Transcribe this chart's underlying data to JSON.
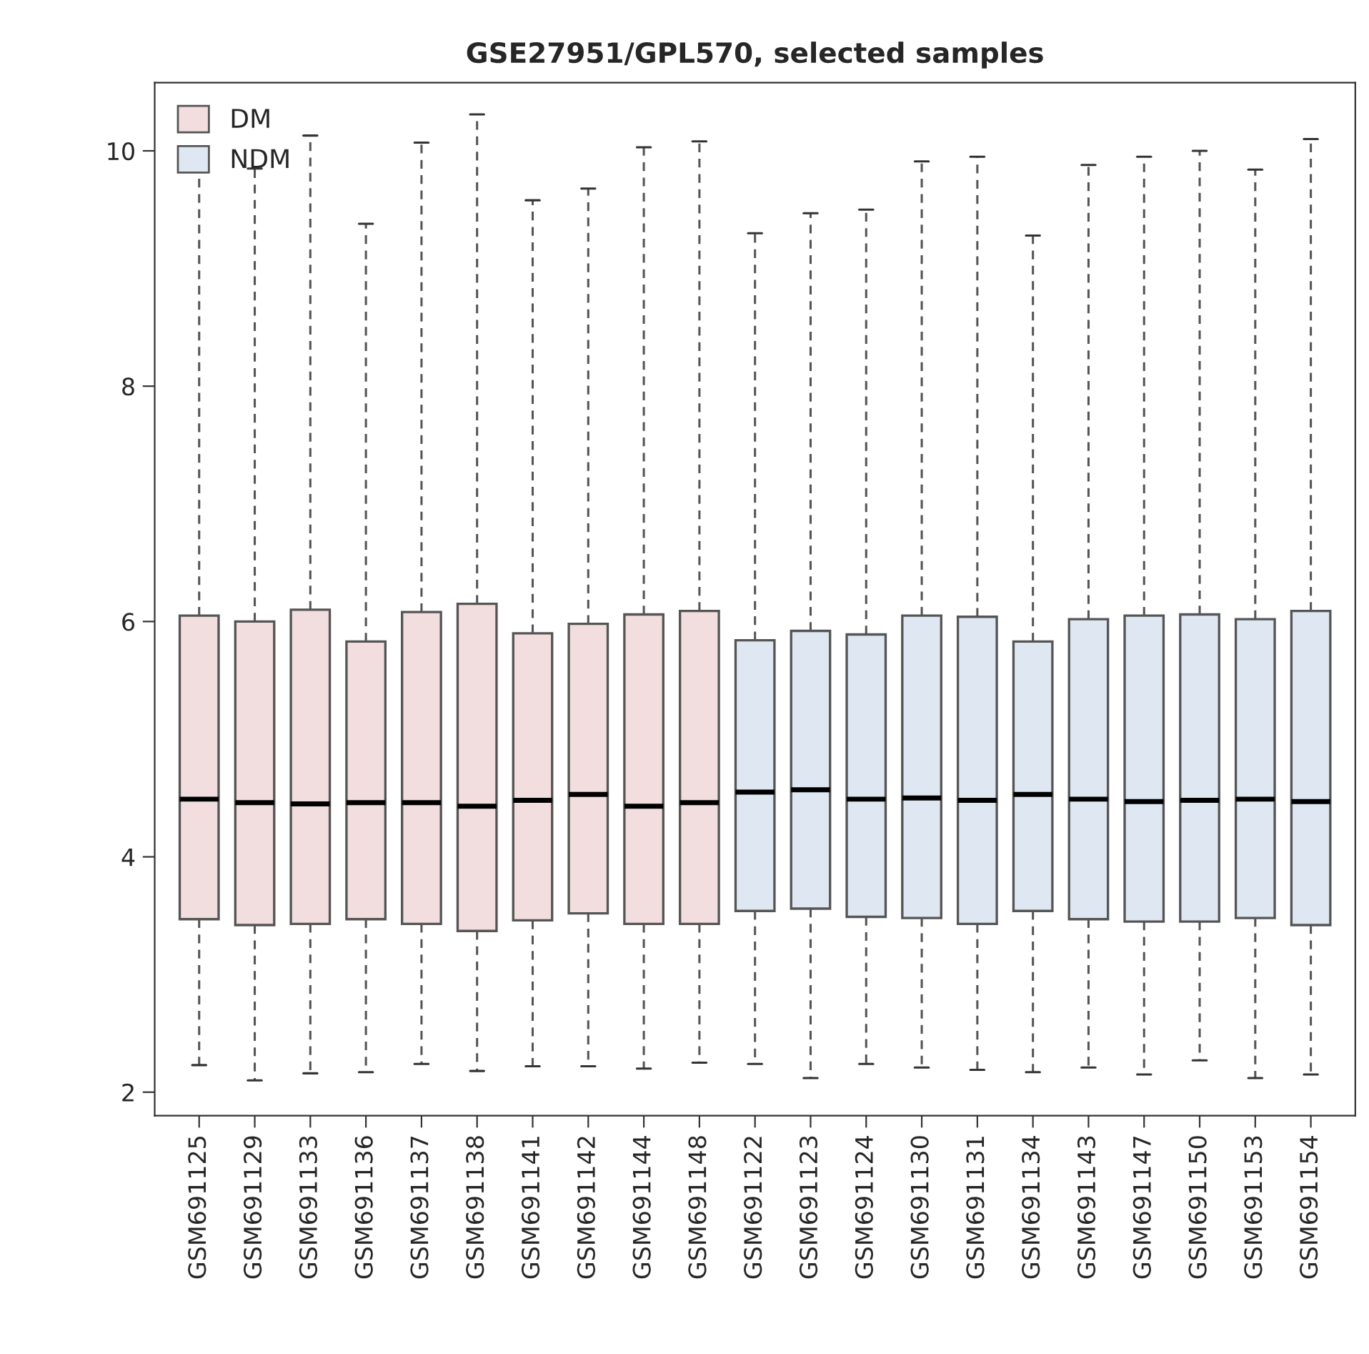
{
  "chart_data": {
    "type": "box",
    "title": "GSE27951/GPL570, selected samples",
    "categories": [
      "GSM691125",
      "GSM691129",
      "GSM691133",
      "GSM691136",
      "GSM691137",
      "GSM691138",
      "GSM691141",
      "GSM691142",
      "GSM691144",
      "GSM691148",
      "GSM691122",
      "GSM691123",
      "GSM691124",
      "GSM691130",
      "GSM691131",
      "GSM691134",
      "GSM691143",
      "GSM691147",
      "GSM691150",
      "GSM691153",
      "GSM691154"
    ],
    "series": [
      {
        "name": "DM",
        "color": "#f2dede",
        "x": [
          "GSM691125",
          "GSM691129",
          "GSM691133",
          "GSM691136",
          "GSM691137",
          "GSM691138",
          "GSM691141",
          "GSM691142",
          "GSM691144",
          "GSM691148"
        ],
        "boxes": [
          {
            "low": 2.23,
            "q1": 3.47,
            "median": 4.49,
            "q3": 6.05,
            "high": 9.96
          },
          {
            "low": 2.1,
            "q1": 3.42,
            "median": 4.46,
            "q3": 6.0,
            "high": 9.85
          },
          {
            "low": 2.16,
            "q1": 3.43,
            "median": 4.45,
            "q3": 6.1,
            "high": 10.13
          },
          {
            "low": 2.17,
            "q1": 3.47,
            "median": 4.46,
            "q3": 5.83,
            "high": 9.38
          },
          {
            "low": 2.24,
            "q1": 3.43,
            "median": 4.46,
            "q3": 6.08,
            "high": 10.07
          },
          {
            "low": 2.18,
            "q1": 3.37,
            "median": 4.43,
            "q3": 6.15,
            "high": 10.31
          },
          {
            "low": 2.22,
            "q1": 3.46,
            "median": 4.48,
            "q3": 5.9,
            "high": 9.58
          },
          {
            "low": 2.22,
            "q1": 3.52,
            "median": 4.53,
            "q3": 5.98,
            "high": 9.68
          },
          {
            "low": 2.2,
            "q1": 3.43,
            "median": 4.43,
            "q3": 6.06,
            "high": 10.03
          },
          {
            "low": 2.25,
            "q1": 3.43,
            "median": 4.46,
            "q3": 6.09,
            "high": 10.08
          }
        ]
      },
      {
        "name": "NDM",
        "color": "#dfe8f2",
        "x": [
          "GSM691122",
          "GSM691123",
          "GSM691124",
          "GSM691130",
          "GSM691131",
          "GSM691134",
          "GSM691143",
          "GSM691147",
          "GSM691150",
          "GSM691153",
          "GSM691154"
        ],
        "boxes": [
          {
            "low": 2.24,
            "q1": 3.54,
            "median": 4.55,
            "q3": 5.84,
            "high": 9.3
          },
          {
            "low": 2.12,
            "q1": 3.56,
            "median": 4.57,
            "q3": 5.92,
            "high": 9.47
          },
          {
            "low": 2.24,
            "q1": 3.49,
            "median": 4.49,
            "q3": 5.89,
            "high": 9.5
          },
          {
            "low": 2.21,
            "q1": 3.48,
            "median": 4.5,
            "q3": 6.05,
            "high": 9.91
          },
          {
            "low": 2.19,
            "q1": 3.43,
            "median": 4.48,
            "q3": 6.04,
            "high": 9.95
          },
          {
            "low": 2.17,
            "q1": 3.54,
            "median": 4.53,
            "q3": 5.83,
            "high": 9.28
          },
          {
            "low": 2.21,
            "q1": 3.47,
            "median": 4.49,
            "q3": 6.02,
            "high": 9.88
          },
          {
            "low": 2.15,
            "q1": 3.45,
            "median": 4.47,
            "q3": 6.05,
            "high": 9.95
          },
          {
            "low": 2.27,
            "q1": 3.45,
            "median": 4.48,
            "q3": 6.06,
            "high": 10.0
          },
          {
            "low": 2.12,
            "q1": 3.48,
            "median": 4.49,
            "q3": 6.02,
            "high": 9.84
          },
          {
            "low": 2.15,
            "q1": 3.42,
            "median": 4.47,
            "q3": 6.09,
            "high": 10.1
          }
        ]
      }
    ],
    "ylim": [
      1.8,
      10.58
    ],
    "yticks": [
      2,
      4,
      6,
      8,
      10
    ],
    "grid": false,
    "legend": "top left"
  }
}
